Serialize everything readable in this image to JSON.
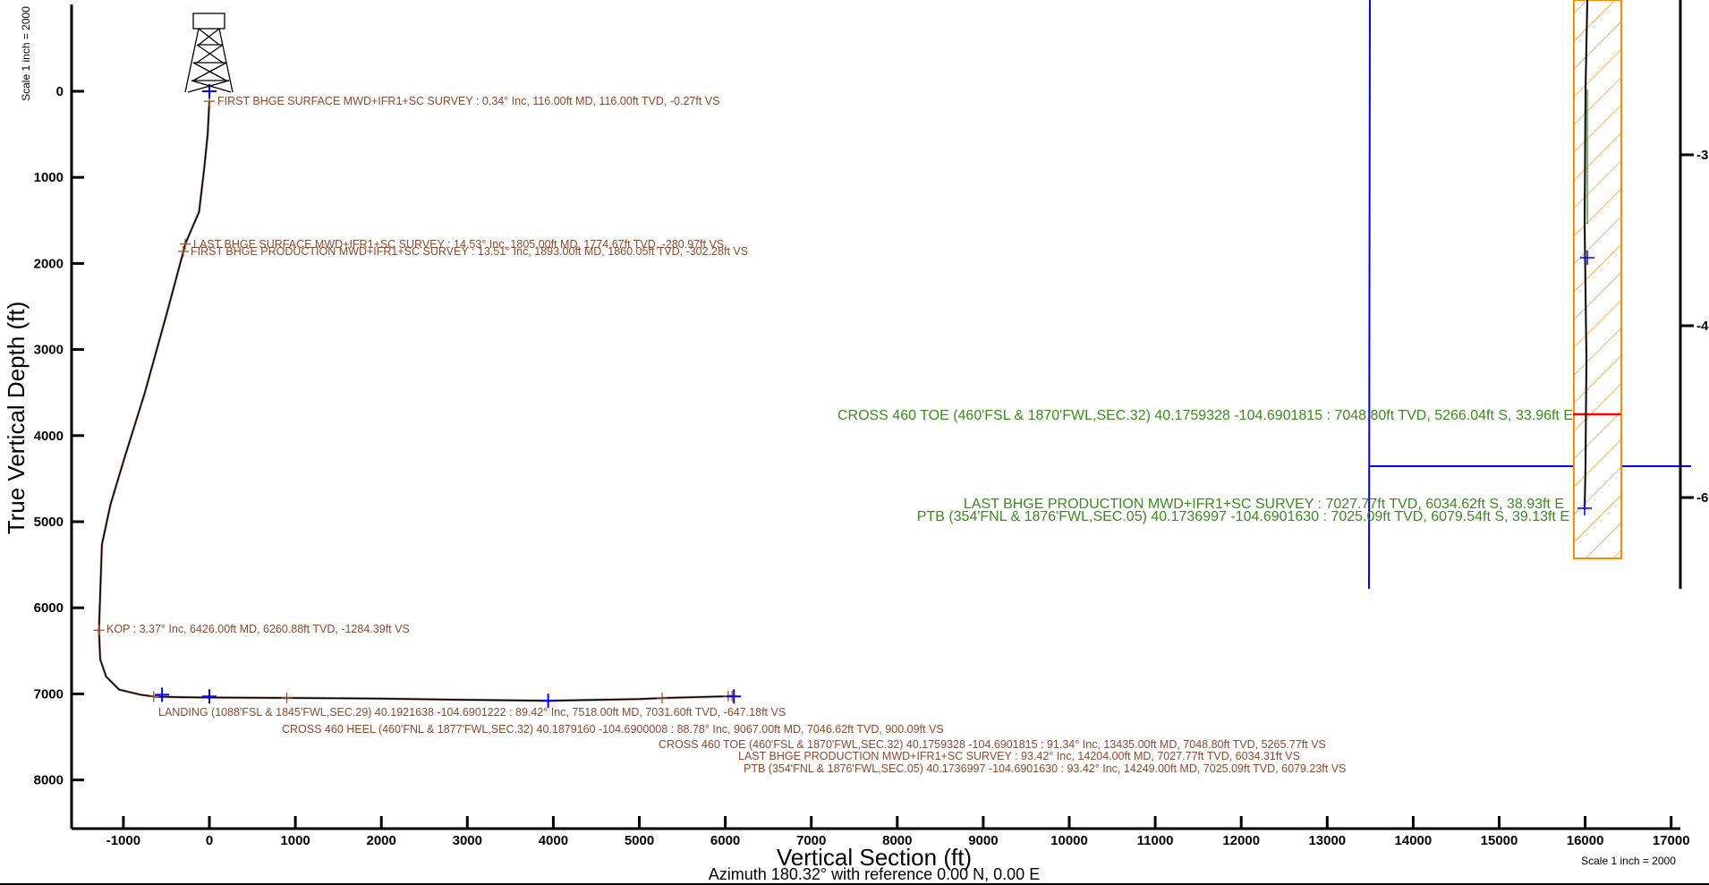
{
  "chart_data": {
    "type": "line",
    "xlabel": "Vertical Section (ft)",
    "ylabel": "True Vertical Depth (ft)",
    "subtitle": "Azimuth 180.32° with reference 0.00 N, 0.00 E",
    "scale_label": "Scale 1 inch = 2000",
    "xlim": [
      -1600,
      17200
    ],
    "ylim": [
      8600,
      -1000
    ],
    "x_ticks": [
      -1000,
      0,
      1000,
      2000,
      3000,
      4000,
      5000,
      6000,
      7000,
      8000,
      9000,
      10000,
      11000,
      12000,
      13000,
      14000,
      15000,
      16000,
      17000
    ],
    "y_ticks": [
      0,
      1000,
      2000,
      3000,
      4000,
      5000,
      6000,
      7000,
      8000
    ],
    "right_axis_tick_labels": [
      "-3",
      "-4",
      "-6"
    ],
    "series": [
      {
        "values_x": [
          -0.27,
          -20,
          -60,
          -120,
          -280.97,
          -302.28,
          -500,
          -750,
          -1000,
          -1150,
          -1250,
          -1284.39,
          -1270,
          -1200,
          -1050,
          -800,
          -647.18,
          -300,
          0,
          900.09,
          2000,
          3000,
          3940,
          5000,
          5265.77,
          6034.31,
          6079.23
        ],
        "values_y": [
          116,
          500,
          900,
          1400,
          1774.67,
          1860.05,
          2600,
          3500,
          4300,
          4800,
          5265,
          6260.88,
          6600,
          6800,
          6950,
          7010,
          7031.6,
          7040,
          7043,
          7046.62,
          7055,
          7070,
          7080,
          7060,
          7048.8,
          7027.77,
          7025.09
        ]
      }
    ],
    "survey_markers": [
      {
        "x": -0.27,
        "y": 116
      },
      {
        "x": -280.97,
        "y": 1774.67
      },
      {
        "x": -302.28,
        "y": 1860.05
      },
      {
        "x": -1284.39,
        "y": 6260.88
      },
      {
        "x": -647.18,
        "y": 7031.6
      },
      {
        "x": 900.09,
        "y": 7046.62
      },
      {
        "x": 5265.77,
        "y": 7048.8
      },
      {
        "x": 6034.31,
        "y": 7027.77
      },
      {
        "x": 6079.23,
        "y": 7025.09
      }
    ],
    "target_markers": [
      {
        "x": 0,
        "y": 0
      },
      {
        "x": -550,
        "y": 7010
      },
      {
        "x": 0,
        "y": 7030
      },
      {
        "x": 3940,
        "y": 7080
      },
      {
        "x": 6100,
        "y": 7030
      }
    ],
    "annotations": [
      "FIRST BHGE SURFACE MWD+IFR1+SC SURVEY : 0.34° Inc, 116.00ft MD, 116.00ft TVD, -0.27ft VS",
      "LAST BHGE SURFACE MWD+IFR1+SC SURVEY : 14.53° Inc, 1805.00ft MD, 1774.67ft TVD, -280.97ft VS",
      "FIRST BHGE PRODUCTION MWD+IFR1+SC SURVEY : 13.51° Inc, 1893.00ft MD, 1860.05ft TVD, -302.28ft VS",
      "KOP : 3.37° Inc, 6426.00ft MD, 6260.88ft TVD, -1284.39ft VS",
      "LANDING (1088'FSL & 1845'FWL,SEC.29) 40.1921638 -104.6901222 : 89.42° Inc, 7518.00ft MD, 7031.60ft TVD, -647.18ft VS",
      "CROSS 460 HEEL (460'FNL & 1877'FWL,SEC.32) 40.1879160 -104.6900008 : 88.78° Inc, 9067.00ft MD, 7046.62ft TVD, 900.09ft VS",
      "CROSS 460 TOE (460'FSL & 1870'FWL,SEC.32) 40.1759328 -104.6901815 : 91.34° Inc, 13435.00ft MD, 7048.80ft TVD, 5265.77ft VS",
      "LAST BHGE PRODUCTION MWD+IFR1+SC SURVEY : 93.42° Inc, 14204.00ft MD, 7027.77ft TVD, 6034.31ft VS",
      "PTB (354'FNL & 1876'FWL,SEC.05) 40.1736997 -104.6901630 : 93.42° Inc, 14249.00ft MD, 7025.09ft TVD, 6079.23ft VS"
    ],
    "plan_view_annotations": [
      "CROSS 460 TOE (460'FSL & 1870'FWL,SEC.32) 40.1759328 -104.6901815 : 7048.80ft TVD, 5266.04ft S, 33.96ft E",
      "LAST BHGE PRODUCTION MWD+IFR1+SC SURVEY : 7027.77ft TVD, 6034.62ft S, 38.93ft E",
      "PTB (354'FNL & 1876'FWL,SEC.05) 40.1736997 -104.6901630 : 7025.09ft TVD, 6079.54ft S, 39.13ft E"
    ],
    "colors": {
      "path": "#000000",
      "annotation": "#8b4a2e",
      "plan_annotation": "#3a8a1e",
      "survey_marker": "#8b4a2e",
      "target_marker": "#0000ff",
      "lease_line": "#0000ff",
      "hardline": "#ff8c00",
      "plan_marker": "#ff0000"
    },
    "grid": false,
    "legend": "none"
  }
}
